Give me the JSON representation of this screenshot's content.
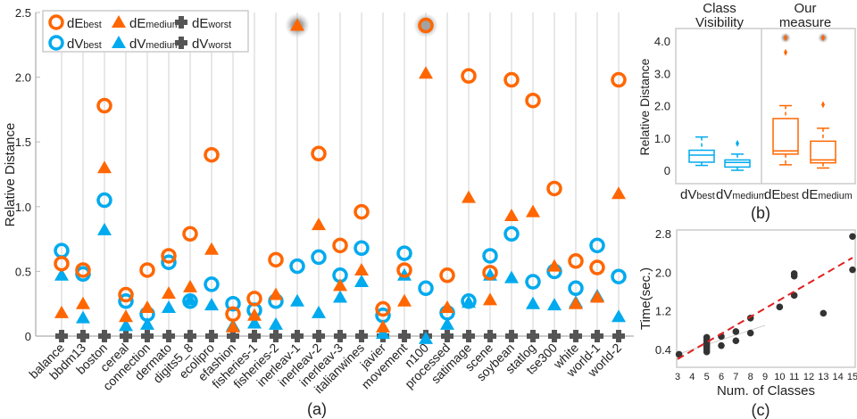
{
  "colors": {
    "orange": "#ff6600",
    "blue": "#00aaee",
    "gray": "#555555",
    "red": "#e02020"
  },
  "chart_data": [
    {
      "type": "scatter",
      "panel_label": "(a)",
      "ylabel": "Relative Distance",
      "ylim": [
        0,
        2.5
      ],
      "yticks": [
        "0",
        "0.5",
        "1.0",
        "1.5",
        "2.0",
        "2.5"
      ],
      "grid": "vertical",
      "legend_placement": "top-left",
      "categories": [
        "balance",
        "bbdm13",
        "boston",
        "cereal",
        "connection",
        "dermato",
        "digits5_8",
        "ecolipro",
        "efashion",
        "fisheries-1",
        "fisheries-2",
        "inerleav-1",
        "inerleav-2",
        "inerleav-3",
        "italianwines",
        "javier",
        "movement",
        "n100",
        "processed",
        "satimage",
        "scene",
        "soybean",
        "statlog",
        "tse300",
        "white",
        "world-1",
        "world-2"
      ],
      "series": [
        {
          "name": "dE",
          "sub": "best",
          "marker": "circle",
          "color": "#ff6600",
          "values": [
            0.56,
            0.51,
            1.78,
            0.32,
            0.51,
            0.62,
            0.79,
            1.4,
            0.17,
            0.29,
            0.59,
            2.4,
            1.41,
            0.7,
            0.96,
            0.21,
            0.51,
            2.4,
            0.47,
            2.01,
            0.49,
            1.98,
            1.82,
            1.14,
            0.58,
            0.53,
            1.98
          ]
        },
        {
          "name": "dE",
          "sub": "medium",
          "marker": "triangle",
          "color": "#ff6600",
          "values": [
            0.18,
            0.25,
            1.3,
            0.15,
            0.22,
            0.33,
            0.38,
            0.67,
            0.07,
            0.16,
            0.32,
            2.4,
            0.86,
            0.39,
            0.51,
            0.07,
            0.27,
            2.03,
            0.22,
            1.07,
            0.28,
            0.93,
            0.96,
            0.54,
            0.25,
            0.3,
            1.1
          ]
        },
        {
          "name": "dE",
          "sub": "worst",
          "marker": "plus",
          "color": "#555555",
          "values": [
            0,
            0,
            0,
            0,
            0,
            0,
            0,
            0,
            0,
            0,
            0,
            0,
            0,
            0,
            0,
            0,
            0,
            0,
            0,
            0,
            0,
            0,
            0,
            0,
            0,
            0,
            0
          ]
        },
        {
          "name": "dV",
          "sub": "best",
          "marker": "circle",
          "color": "#00aaee",
          "values": [
            0.66,
            0.48,
            1.05,
            0.27,
            0.17,
            0.57,
            0.27,
            0.4,
            0.25,
            0.2,
            0.27,
            0.54,
            0.61,
            0.47,
            0.68,
            0.16,
            0.64,
            0.37,
            0.18,
            0.27,
            0.62,
            0.79,
            0.42,
            0.5,
            0.37,
            0.7,
            0.46
          ]
        },
        {
          "name": "dV",
          "sub": "medium",
          "marker": "triangle",
          "color": "#00aaee",
          "values": [
            0.47,
            0.14,
            0.82,
            0.08,
            0.09,
            0.22,
            0.28,
            0.24,
            0.08,
            0.1,
            0.09,
            0.27,
            0.18,
            0.3,
            0.42,
            0.02,
            0.47,
            -0.02,
            0.09,
            0.26,
            0.47,
            0.45,
            0.25,
            0.24,
            0.26,
            0.31,
            0.15
          ]
        },
        {
          "name": "dV",
          "sub": "worst",
          "marker": "plus",
          "color": "#555555",
          "values": [
            0,
            0,
            0,
            0,
            0,
            0,
            0,
            0,
            0,
            0,
            0,
            0,
            0,
            0,
            0,
            0,
            0,
            0,
            0,
            0,
            0,
            0,
            0,
            0,
            0,
            0,
            0
          ]
        }
      ],
      "highlighted_off_scale": [
        "inerleav-1",
        "n100"
      ]
    },
    {
      "type": "box",
      "panel_label": "(b)",
      "ylabel": "Relative Distance",
      "yticks": [
        "0",
        "1.0",
        "2.0",
        "3.0",
        "4.0"
      ],
      "group_titles": [
        [
          "Class",
          "Visibility"
        ],
        [
          "Our",
          "measure"
        ]
      ],
      "boxes": [
        {
          "name": "dV",
          "sub": "best",
          "color": "#00aaee",
          "min": 0.15,
          "q1": 0.25,
          "median": 0.47,
          "q3": 0.62,
          "max": 1.03,
          "outliers": []
        },
        {
          "name": "dV",
          "sub": "medium",
          "color": "#00aaee",
          "min": 0.0,
          "q1": 0.1,
          "median": 0.24,
          "q3": 0.32,
          "max": 0.5,
          "outliers": [
            0.83
          ]
        },
        {
          "name": "dE",
          "sub": "best",
          "color": "#ff6600",
          "min": 0.17,
          "q1": 0.5,
          "median": 0.6,
          "q3": 1.6,
          "max": 2.0,
          "outliers": [
            3.65,
            4.1
          ]
        },
        {
          "name": "dE",
          "sub": "medium",
          "color": "#ff6600",
          "min": 0.07,
          "q1": 0.23,
          "median": 0.32,
          "q3": 0.9,
          "max": 1.3,
          "outliers": [
            2.03,
            4.1
          ]
        }
      ]
    },
    {
      "type": "scatter",
      "panel_label": "(c)",
      "xlabel": "Num. of Classes",
      "ylabel": "Time(sec.)",
      "xticks": [
        "3",
        "4",
        "5",
        "6",
        "7",
        "8",
        "9",
        "10",
        "11",
        "12",
        "13",
        "14",
        "15"
      ],
      "yticks": [
        "0.4",
        "1.2",
        "2.0",
        "2.8"
      ],
      "points": [
        [
          3.1,
          0.3
        ],
        [
          5,
          0.35
        ],
        [
          5,
          0.4
        ],
        [
          5,
          0.45
        ],
        [
          5,
          0.5
        ],
        [
          5,
          0.55
        ],
        [
          5,
          0.6
        ],
        [
          5,
          0.65
        ],
        [
          6,
          0.48
        ],
        [
          6,
          0.67
        ],
        [
          7,
          0.58
        ],
        [
          7,
          0.77
        ],
        [
          8,
          0.74
        ],
        [
          8,
          1.05
        ],
        [
          10,
          1.28
        ],
        [
          11,
          1.52
        ],
        [
          11,
          1.92
        ],
        [
          11,
          1.97
        ],
        [
          13,
          1.15
        ],
        [
          15,
          2.05
        ],
        [
          15,
          2.74
        ]
      ],
      "trend_line": [
        [
          3,
          0.2
        ],
        [
          15,
          2.3
        ]
      ],
      "secondary_line": [
        [
          3.3,
          0.33
        ],
        [
          9,
          0.9
        ]
      ]
    }
  ]
}
